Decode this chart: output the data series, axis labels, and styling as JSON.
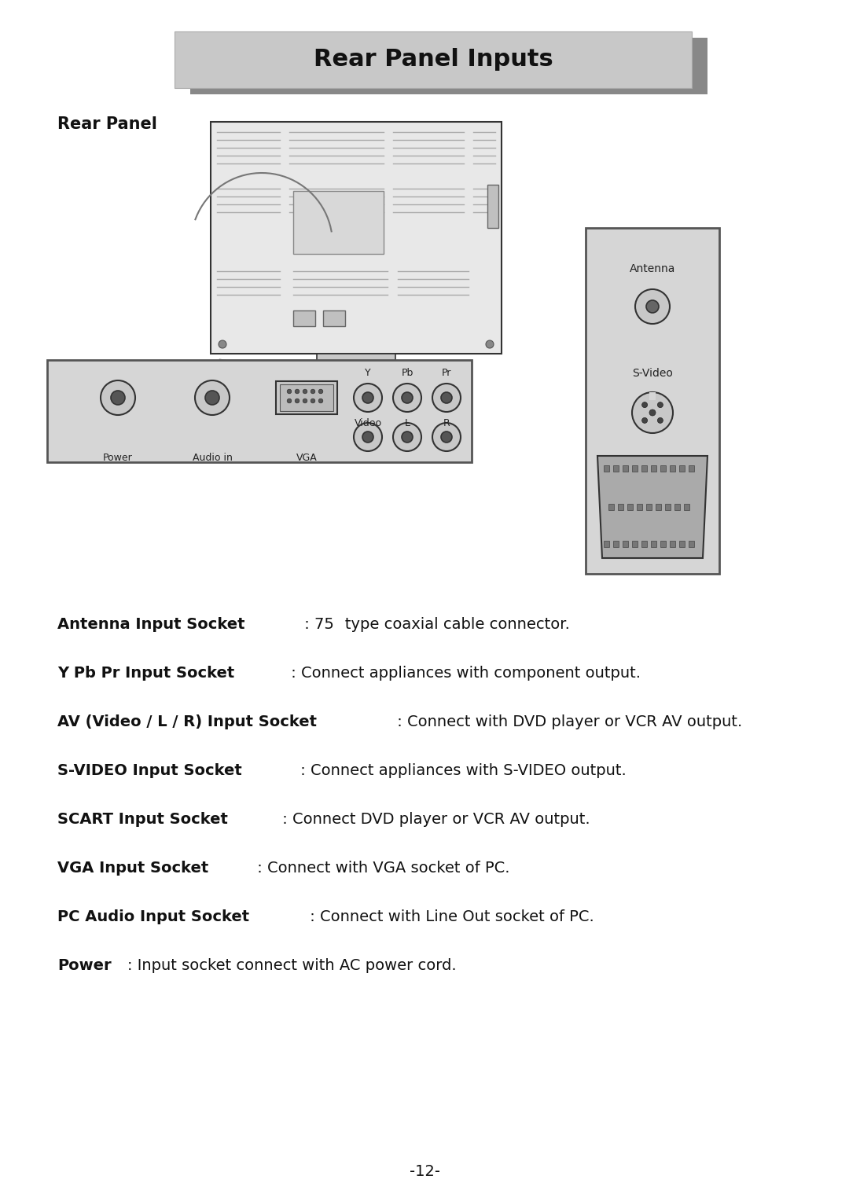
{
  "title": "Rear Panel Inputs",
  "subtitle": "Rear Panel",
  "page_number": "-12-",
  "bg": "#ffffff",
  "title_bg": "#c8c8c8",
  "title_shadow": "#888888",
  "panel_bg": "#d6d6d6",
  "tv_bg": "#e8e8e8",
  "dark": "#333333",
  "mid": "#888888",
  "text_entries": [
    {
      "bold": "Antenna Input Socket",
      "normal": " : 75   type coaxial cable connector."
    },
    {
      "bold": "Y Pb Pr Input Socket",
      "normal": " : Connect appliances with component output."
    },
    {
      "bold": "AV (Video / L / R) Input Socket",
      "normal": " : Connect with DVD player or VCR AV output."
    },
    {
      "bold": "S-VIDEO Input Socket",
      "normal": " : Connect appliances with S-VIDEO output."
    },
    {
      "bold": "SCART Input Socket",
      "normal": " : Connect DVD player or VCR AV output."
    },
    {
      "bold": "VGA Input Socket",
      "normal": " : Connect with VGA socket of PC."
    },
    {
      "bold": "PC Audio Input Socket",
      "normal": " : Connect with Line Out socket of PC."
    },
    {
      "bold": "Power",
      "normal": ": Input socket connect with AC power cord."
    }
  ],
  "title_fontsize": 22,
  "subtitle_fontsize": 15,
  "body_fontsize": 14,
  "page_fontsize": 14,
  "connector_fontsize": 9,
  "label_fontsize": 10
}
